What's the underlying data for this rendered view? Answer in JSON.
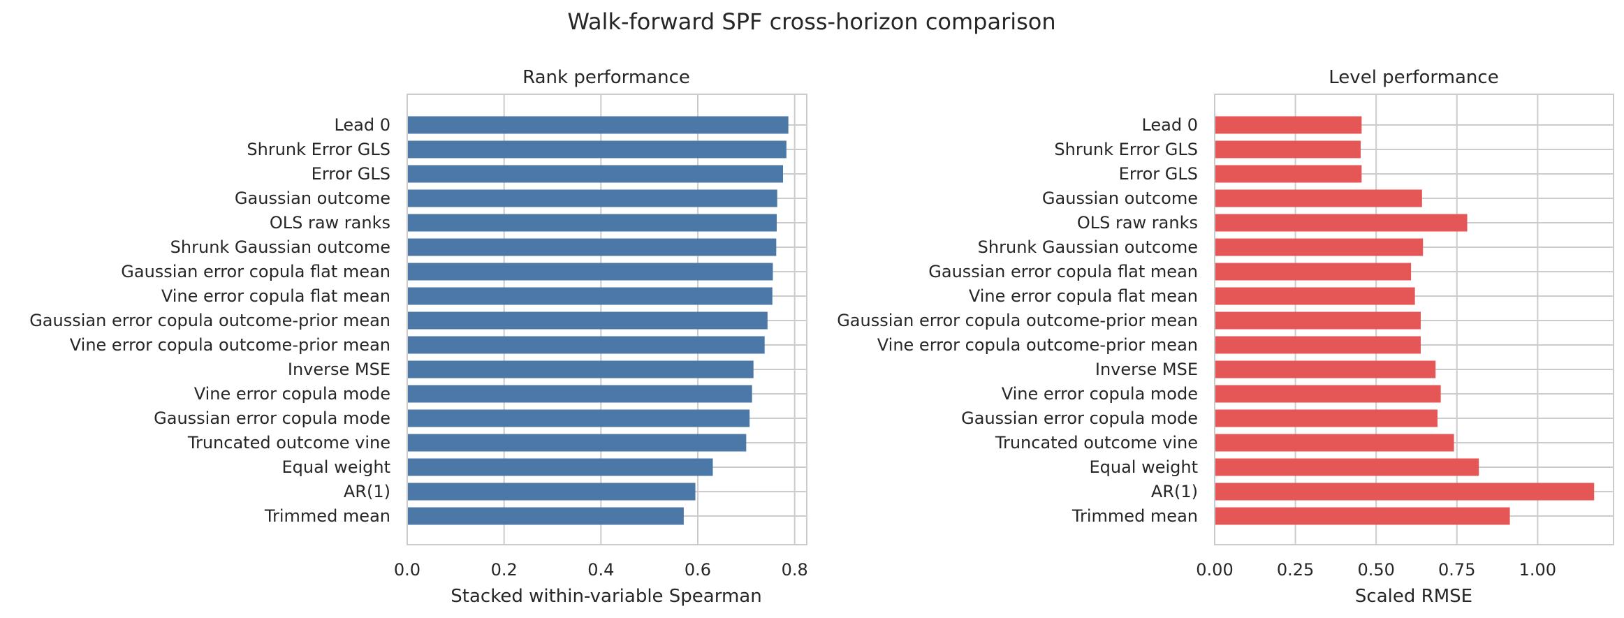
{
  "figure": {
    "title": "Walk-forward SPF cross-horizon comparison"
  },
  "chart_data": [
    {
      "type": "bar",
      "orientation": "horizontal",
      "title": "Rank performance",
      "xlabel": "Stacked within-variable Spearman",
      "ylabel": "",
      "xlim": [
        0,
        0.825
      ],
      "xticks": [
        "0.0",
        "0.2",
        "0.4",
        "0.6",
        "0.8"
      ],
      "xtick_values": [
        0.0,
        0.2,
        0.4,
        0.6,
        0.8
      ],
      "grid": true,
      "color": "#4c78a8",
      "categories": [
        "Lead 0",
        "Shrunk Error GLS",
        "Error GLS",
        "Gaussian outcome",
        "OLS raw ranks",
        "Shrunk Gaussian outcome",
        "Gaussian error copula flat mean",
        "Vine error copula flat mean",
        "Gaussian error copula outcome-prior mean",
        "Vine error copula outcome-prior mean",
        "Inverse MSE",
        "Vine error copula mode",
        "Gaussian error copula mode",
        "Truncated outcome vine",
        "Equal weight",
        "AR(1)",
        "Trimmed mean"
      ],
      "values": [
        0.787,
        0.783,
        0.776,
        0.764,
        0.763,
        0.762,
        0.755,
        0.754,
        0.744,
        0.738,
        0.715,
        0.712,
        0.707,
        0.7,
        0.631,
        0.595,
        0.571
      ]
    },
    {
      "type": "bar",
      "orientation": "horizontal",
      "title": "Level performance",
      "xlabel": "Scaled RMSE",
      "ylabel": "",
      "xlim": [
        0,
        1.235
      ],
      "xticks": [
        "0.00",
        "0.25",
        "0.50",
        "0.75",
        "1.00"
      ],
      "xtick_values": [
        0.0,
        0.25,
        0.5,
        0.75,
        1.0
      ],
      "grid": true,
      "color": "#e45756",
      "categories": [
        "Lead 0",
        "Shrunk Error GLS",
        "Error GLS",
        "Gaussian outcome",
        "OLS raw ranks",
        "Shrunk Gaussian outcome",
        "Gaussian error copula flat mean",
        "Vine error copula flat mean",
        "Gaussian error copula outcome-prior mean",
        "Vine error copula outcome-prior mean",
        "Inverse MSE",
        "Vine error copula mode",
        "Gaussian error copula mode",
        "Truncated outcome vine",
        "Equal weight",
        "AR(1)",
        "Trimmed mean"
      ],
      "values": [
        0.455,
        0.452,
        0.455,
        0.642,
        0.782,
        0.645,
        0.608,
        0.62,
        0.638,
        0.638,
        0.684,
        0.7,
        0.69,
        0.741,
        0.818,
        1.175,
        0.914
      ]
    }
  ]
}
